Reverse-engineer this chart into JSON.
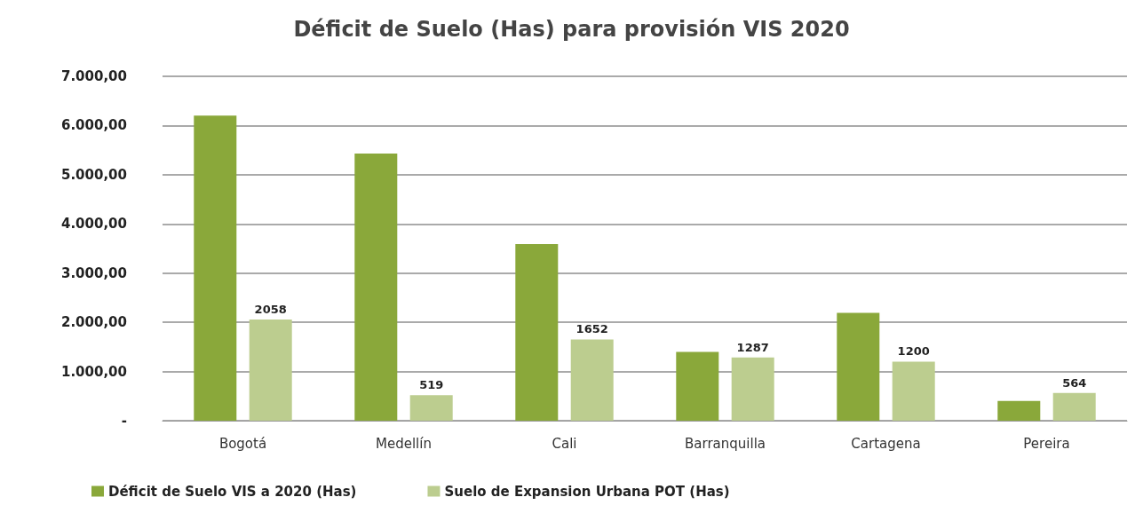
{
  "chart_data": {
    "type": "bar",
    "title": "Déficit de Suelo (Has) para provisión VIS 2020",
    "categories": [
      "Bogotá",
      "Medellín",
      "Cali",
      "Barranquilla",
      "Cartagena",
      "Pereira"
    ],
    "series": [
      {
        "name": "Déficit de Suelo VIS a 2020 (Has)",
        "color": "#8aa83a",
        "values": [
          6200,
          5430,
          3590,
          1400,
          2190,
          400
        ]
      },
      {
        "name": "Suelo de Expansion Urbana POT (Has)",
        "color": "#bccd8f",
        "values": [
          2058,
          519,
          1652,
          1287,
          1200,
          564
        ],
        "value_labels": [
          "2058",
          "519",
          "1652",
          "1287",
          "1200",
          "564"
        ]
      }
    ],
    "ylim": [
      0,
      7000
    ],
    "yticks": [
      {
        "value": 0,
        "label": "-"
      },
      {
        "value": 1000,
        "label": "1.000,00"
      },
      {
        "value": 2000,
        "label": "2.000,00"
      },
      {
        "value": 3000,
        "label": "3.000,00"
      },
      {
        "value": 4000,
        "label": "4.000,00"
      },
      {
        "value": 5000,
        "label": "5.000,00"
      },
      {
        "value": 6000,
        "label": "6.000,00"
      },
      {
        "value": 7000,
        "label": "7.000,00"
      }
    ],
    "grid": "y",
    "legend": "bottom left"
  }
}
